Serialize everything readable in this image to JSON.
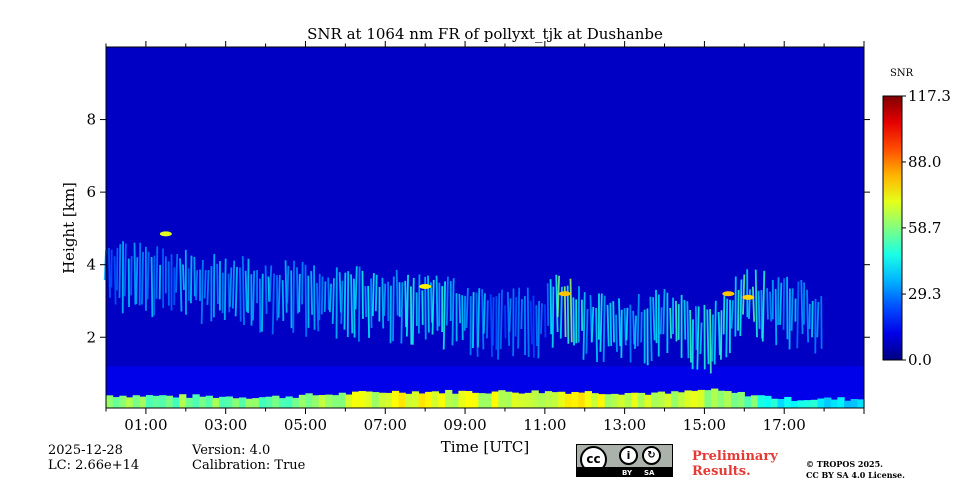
{
  "chart_data": {
    "type": "heatmap",
    "title": "SNR at 1064 nm FR of pollyxt_tjk at Dushanbe",
    "xlabel": "Time [UTC]",
    "ylabel": "Height [km]",
    "xlim_hours": [
      0,
      19
    ],
    "ylim_km": [
      0.05,
      10.0
    ],
    "x_ticks": [
      {
        "hour": 1,
        "label": "01:00"
      },
      {
        "hour": 3,
        "label": "03:00"
      },
      {
        "hour": 5,
        "label": "05:00"
      },
      {
        "hour": 7,
        "label": "07:00"
      },
      {
        "hour": 9,
        "label": "09:00"
      },
      {
        "hour": 11,
        "label": "11:00"
      },
      {
        "hour": 13,
        "label": "13:00"
      },
      {
        "hour": 15,
        "label": "15:00"
      },
      {
        "hour": 17,
        "label": "17:00"
      }
    ],
    "y_ticks": [
      2,
      4,
      6,
      8
    ],
    "colorbar": {
      "label": "SNR",
      "min": 0.0,
      "max": 117.3,
      "ticks": [
        "117.3",
        "88.0",
        "58.7",
        "29.3",
        "0.0"
      ],
      "tick_values": [
        117.3,
        88.0,
        58.7,
        29.3,
        0.0
      ],
      "colormap": "jet"
    },
    "background_snr": 8,
    "cloud_layer": [
      {
        "hour": 0.0,
        "height_km": 4.0,
        "snr": 32
      },
      {
        "hour": 1.0,
        "height_km": 3.8,
        "snr": 35
      },
      {
        "hour": 2.0,
        "height_km": 3.7,
        "snr": 34
      },
      {
        "hour": 3.0,
        "height_km": 3.5,
        "snr": 36
      },
      {
        "hour": 4.0,
        "height_km": 3.4,
        "snr": 38
      },
      {
        "hour": 5.0,
        "height_km": 3.3,
        "snr": 36
      },
      {
        "hour": 6.0,
        "height_km": 3.2,
        "snr": 40
      },
      {
        "hour": 7.0,
        "height_km": 3.1,
        "snr": 42
      },
      {
        "hour": 8.0,
        "height_km": 3.0,
        "snr": 44
      },
      {
        "hour": 9.0,
        "height_km": 2.8,
        "snr": 40
      },
      {
        "hour": 10.0,
        "height_km": 2.6,
        "snr": 28
      },
      {
        "hour": 11.0,
        "height_km": 2.7,
        "snr": 30
      },
      {
        "hour": 11.5,
        "height_km": 3.1,
        "snr": 60
      },
      {
        "hour": 12.0,
        "height_km": 2.5,
        "snr": 42
      },
      {
        "hour": 13.0,
        "height_km": 2.3,
        "snr": 40
      },
      {
        "hour": 14.0,
        "height_km": 2.6,
        "snr": 44
      },
      {
        "hour": 15.0,
        "height_km": 2.1,
        "snr": 46
      },
      {
        "hour": 16.0,
        "height_km": 3.1,
        "snr": 50
      },
      {
        "hour": 17.0,
        "height_km": 3.0,
        "snr": 38
      },
      {
        "hour": 18.0,
        "height_km": 2.5,
        "snr": 36
      }
    ],
    "surface_layer": [
      {
        "hour": 0.0,
        "top_km": 0.4,
        "snr": 60
      },
      {
        "hour": 4.0,
        "top_km": 0.35,
        "snr": 55
      },
      {
        "hour": 7.0,
        "top_km": 0.5,
        "snr": 70
      },
      {
        "hour": 9.0,
        "top_km": 0.5,
        "snr": 68
      },
      {
        "hour": 11.5,
        "top_km": 0.5,
        "snr": 72
      },
      {
        "hour": 14.0,
        "top_km": 0.45,
        "snr": 62
      },
      {
        "hour": 15.0,
        "top_km": 0.55,
        "snr": 65
      },
      {
        "hour": 17.0,
        "top_km": 0.3,
        "snr": 45
      },
      {
        "hour": 19.0,
        "top_km": 0.3,
        "snr": 40
      }
    ]
  },
  "info": {
    "date": "2025-12-28",
    "lc": "LC: 2.66e+14",
    "version": "Version: 4.0",
    "calibration": "Calibration: True",
    "preliminary_line1": "Preliminary",
    "preliminary_line2": "Results.",
    "copyright_line1": "© TROPOS 2025.",
    "copyright_line2": "CC BY SA 4.0 License.",
    "badge_by": "BY",
    "badge_sa": "SA",
    "badge_cc": "cc"
  }
}
